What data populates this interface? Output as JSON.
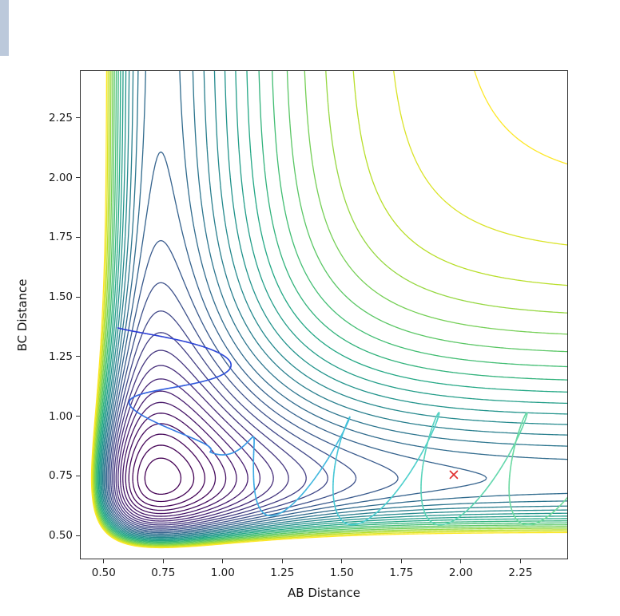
{
  "page": {
    "background": "#ffffff",
    "edge_strip_color": "#bcc9db"
  },
  "chart_data": {
    "type": "contour",
    "title": "",
    "xlabel": "AB Distance",
    "ylabel": "BC Distance",
    "xlim": [
      0.4,
      2.45
    ],
    "ylim": [
      0.4,
      2.45
    ],
    "x_tick_labels": [
      "0.50",
      "0.75",
      "1.00",
      "1.25",
      "1.50",
      "1.75",
      "2.00",
      "2.25"
    ],
    "x_tick_values": [
      0.5,
      0.75,
      1.0,
      1.25,
      1.5,
      1.75,
      2.0,
      2.25
    ],
    "y_tick_labels": [
      "0.50",
      "0.75",
      "1.00",
      "1.25",
      "1.50",
      "1.75",
      "2.00",
      "2.25"
    ],
    "y_tick_values": [
      0.5,
      0.75,
      1.0,
      1.25,
      1.5,
      1.75,
      2.0,
      2.25
    ],
    "grid": false,
    "legend": "none",
    "potential": {
      "description": "Potential energy surface V(x,y) = M(x) + M(y), Morse M(r) = D*(1-exp(-a*(r-r0)))^2; L-shaped reaction valley along x=r0 and y=r0",
      "D": 1.0,
      "a": 3.0,
      "r0": 0.74
    },
    "contours": {
      "n_levels": 30,
      "level_min": 0.05,
      "level_max": 1.95,
      "color_gamma": 1.6,
      "colormap": "viridis",
      "viridis_stops": [
        "#440154",
        "#482475",
        "#414487",
        "#355f8d",
        "#2a788e",
        "#21918c",
        "#22a884",
        "#44bf70",
        "#7ad151",
        "#bddf26",
        "#fde725"
      ],
      "line_width": 1.3
    },
    "trajectory": {
      "description": "Classical trajectory entering reactant valley near (0.56, 1.37), oscillating through the corner and exiting along product valley with looping vibrations centered near y=0.78, leaving at right edge",
      "color_stops": [
        "#2d3bd3",
        "#3568e0",
        "#3aa8e6",
        "#4ccfd2",
        "#66d8a8",
        "#7cdd92"
      ],
      "line_width": 1.6,
      "entrance": {
        "x_center": 0.8,
        "x_amp": 0.27,
        "amp_decay": 0.45,
        "cycles": 1.45,
        "phase": -1.1,
        "y_start": 1.37,
        "y_end": 0.85,
        "y_wobble": 0.015
      },
      "exit": {
        "drift": 1.7,
        "cycles": 4.6,
        "x_amp": 0.115,
        "y_center": 0.78,
        "y_amp": 0.235,
        "tilt_phase": 0.9,
        "start_phase": -1.5708
      }
    },
    "marker": {
      "x": 1.97,
      "y": 0.755,
      "symbol": "x",
      "color": "#e03030",
      "size": 9
    }
  }
}
